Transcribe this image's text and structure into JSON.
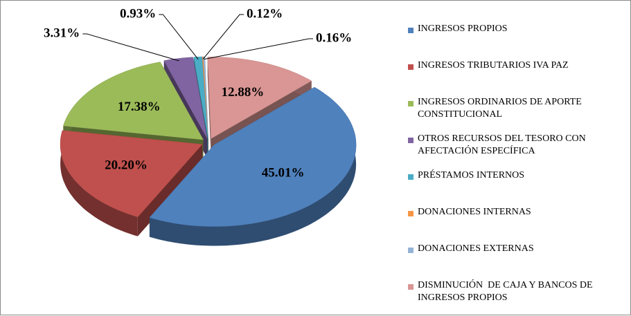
{
  "chart_data": {
    "type": "pie",
    "categories": [
      "INGRESOS PROPIOS",
      "INGRESOS TRIBUTARIOS IVA PAZ",
      "INGRESOS ORDINARIOS DE APORTE CONSTITUCIONAL",
      "OTROS RECURSOS DEL TESORO CON AFECTACIÓN ESPECÍFICA",
      "PRÉSTAMOS INTERNOS",
      "DONACIONES INTERNAS",
      "DONACIONES EXTERNAS",
      "DISMINUCIÓN  DE CAJA Y BANCOS DE INGRESOS PROPIOS"
    ],
    "values": [
      45.01,
      20.2,
      17.38,
      3.31,
      0.93,
      0.12,
      0.16,
      12.88
    ],
    "value_labels": [
      "45.01%",
      "20.20%",
      "17.38%",
      "3.31%",
      "0.93%",
      "0.12%",
      "0.16%",
      "12.88%"
    ],
    "colors": [
      "#4f81bd",
      "#c0504d",
      "#9bbb59",
      "#8064a2",
      "#4bacc6",
      "#f79646",
      "#95b3d7",
      "#d99694"
    ],
    "legend": "right"
  }
}
